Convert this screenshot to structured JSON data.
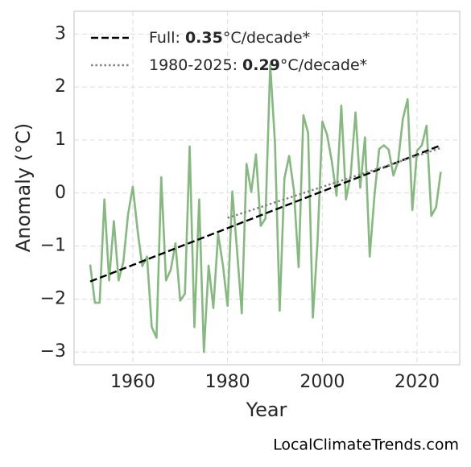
{
  "chart_data": {
    "type": "line",
    "x": [
      1951,
      1952,
      1953,
      1954,
      1955,
      1956,
      1957,
      1958,
      1959,
      1960,
      1961,
      1962,
      1963,
      1964,
      1965,
      1966,
      1967,
      1968,
      1969,
      1970,
      1971,
      1972,
      1973,
      1974,
      1975,
      1976,
      1977,
      1978,
      1979,
      1980,
      1981,
      1982,
      1983,
      1984,
      1985,
      1986,
      1987,
      1988,
      1989,
      1990,
      1991,
      1992,
      1993,
      1994,
      1995,
      1996,
      1997,
      1998,
      1999,
      2000,
      2001,
      2002,
      2003,
      2004,
      2005,
      2006,
      2007,
      2008,
      2009,
      2010,
      2011,
      2012,
      2013,
      2014,
      2015,
      2016,
      2017,
      2018,
      2019,
      2020,
      2021,
      2022,
      2023,
      2024,
      2025
    ],
    "series": [
      {
        "color": "#86b97f",
        "values": [
          -1.35,
          -2.07,
          -2.07,
          -0.12,
          -1.65,
          -0.53,
          -1.65,
          -1.3,
          -0.4,
          0.12,
          -0.7,
          -1.38,
          -1.2,
          -2.53,
          -2.73,
          0.3,
          -1.65,
          -1.45,
          -0.95,
          -2.03,
          -1.9,
          0.88,
          -2.53,
          -0.12,
          -3.0,
          -1.37,
          -2.17,
          -0.77,
          -1.35,
          -2.13,
          0.03,
          -1.08,
          -2.27,
          0.55,
          0.02,
          0.73,
          -0.62,
          -0.48,
          2.42,
          0.95,
          -2.22,
          0.28,
          0.7,
          0.05,
          -1.4,
          1.47,
          1.13,
          -2.35,
          -0.9,
          1.35,
          1.1,
          0.6,
          -0.05,
          1.65,
          -0.12,
          0.35,
          1.52,
          0.1,
          1.05,
          -1.2,
          -0.05,
          0.83,
          0.9,
          0.82,
          0.33,
          0.6,
          1.4,
          1.77,
          -0.32,
          0.8,
          0.9,
          1.27,
          -0.43,
          -0.27,
          0.4
        ]
      }
    ],
    "trends": [
      {
        "prefix": "Full: ",
        "rate": 0.35,
        "suffix": "°C/decade*",
        "x": [
          1951,
          2025
        ],
        "values": [
          -1.67,
          0.9
        ],
        "color": "#000000",
        "style": "dashed"
      },
      {
        "prefix": "1980-2025: ",
        "rate": 0.29,
        "suffix": "°C/decade*",
        "x": [
          1980,
          2025
        ],
        "values": [
          -0.47,
          0.85
        ],
        "color": "#808080",
        "style": "dotted"
      }
    ],
    "xlabel": "Year",
    "ylabel": "Anomaly (°C)",
    "xlim": [
      1947.6,
      2029
    ],
    "ylim": [
      -3.24,
      3.43
    ],
    "xticks": [
      1960,
      1980,
      2000,
      2020
    ],
    "yticks": [
      {
        "value": -3,
        "label": "−3"
      },
      {
        "value": -2,
        "label": "−2"
      },
      {
        "value": -1,
        "label": "−1"
      },
      0,
      1,
      2,
      3
    ],
    "grid": true,
    "legend": "upper left",
    "footer": "LocalClimateTrends.com"
  }
}
